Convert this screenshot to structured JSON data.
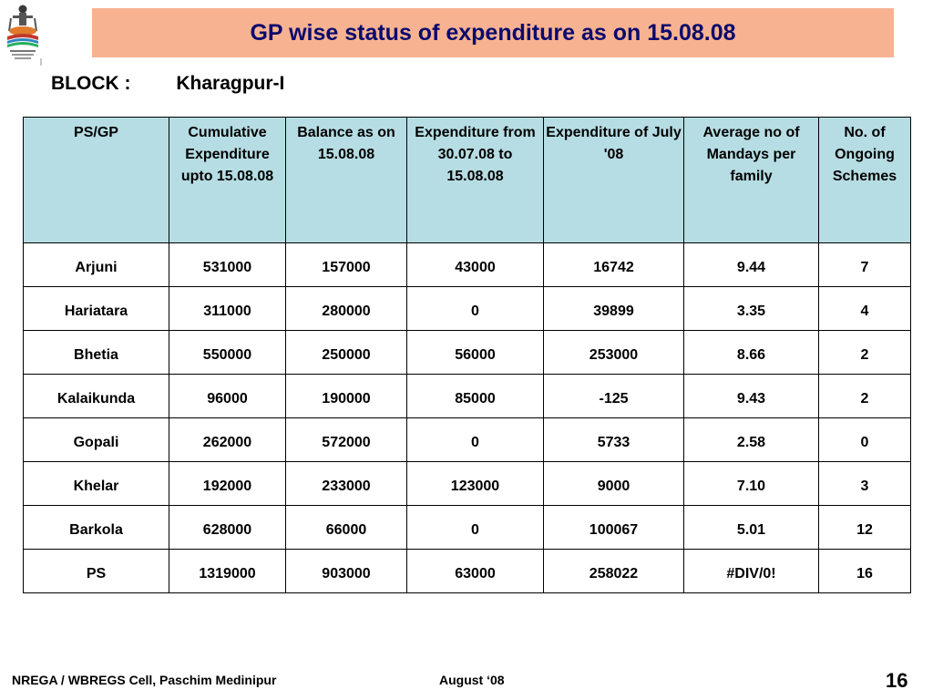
{
  "title": "GP wise status of expenditure as on 15.08.08",
  "block": {
    "label": "BLOCK :",
    "value": "Kharagpur-I"
  },
  "table": {
    "headers": [
      "PS/GP",
      "Cumulative Expenditure upto 15.08.08",
      "Balance as on 15.08.08",
      "Expenditure from 30.07.08 to 15.08.08",
      "Expenditure of  July '08",
      "Average no of Mandays per family",
      "No. of Ongoing Schemes"
    ],
    "rows": [
      [
        "Arjuni",
        "531000",
        "157000",
        "43000",
        "16742",
        "9.44",
        "7"
      ],
      [
        "Hariatara",
        "311000",
        "280000",
        "0",
        "39899",
        "3.35",
        "4"
      ],
      [
        "Bhetia",
        "550000",
        "250000",
        "56000",
        "253000",
        "8.66",
        "2"
      ],
      [
        "Kalaikunda",
        "96000",
        "190000",
        "85000",
        "-125",
        "9.43",
        "2"
      ],
      [
        "Gopali",
        "262000",
        "572000",
        "0",
        "5733",
        "2.58",
        "0"
      ],
      [
        "Khelar",
        "192000",
        "233000",
        "123000",
        "9000",
        "7.10",
        "3"
      ],
      [
        "Barkola",
        "628000",
        "66000",
        "0",
        "100067",
        "5.01",
        "12"
      ],
      [
        "PS",
        "1319000",
        "903000",
        "63000",
        "258022",
        "#DIV/0!",
        "16"
      ]
    ]
  },
  "footer": {
    "left": "NREGA / WBREGS Cell, Paschim Medinipur",
    "middle": "August ‘08",
    "page_number": "16"
  },
  "colors": {
    "title_background": "#f7b291",
    "title_text": "#0a0a6e",
    "header_background": "#b6dde3"
  },
  "icons": {
    "logo": "nrega-logo-icon"
  }
}
